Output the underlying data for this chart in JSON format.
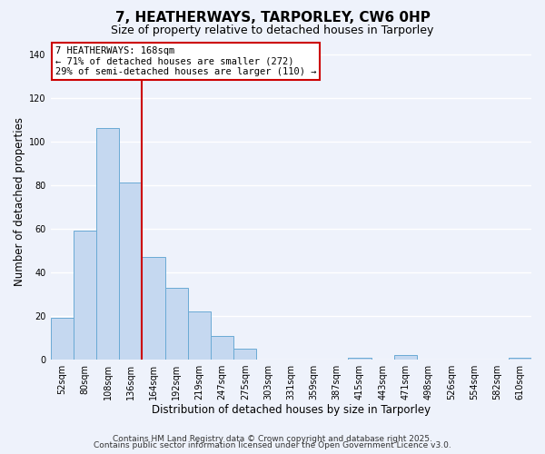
{
  "title": "7, HEATHERWAYS, TARPORLEY, CW6 0HP",
  "subtitle": "Size of property relative to detached houses in Tarporley",
  "xlabel": "Distribution of detached houses by size in Tarporley",
  "ylabel": "Number of detached properties",
  "bar_labels": [
    "52sqm",
    "80sqm",
    "108sqm",
    "136sqm",
    "164sqm",
    "192sqm",
    "219sqm",
    "247sqm",
    "275sqm",
    "303sqm",
    "331sqm",
    "359sqm",
    "387sqm",
    "415sqm",
    "443sqm",
    "471sqm",
    "498sqm",
    "526sqm",
    "554sqm",
    "582sqm",
    "610sqm"
  ],
  "bar_heights": [
    19,
    59,
    106,
    81,
    47,
    33,
    22,
    11,
    5,
    0,
    0,
    0,
    0,
    1,
    0,
    2,
    0,
    0,
    0,
    0,
    1
  ],
  "bar_color": "#c5d8f0",
  "bar_edge_color": "#6aaad4",
  "ylim": [
    0,
    145
  ],
  "yticks": [
    0,
    20,
    40,
    60,
    80,
    100,
    120,
    140
  ],
  "vline_index": 4,
  "vline_color": "#cc0000",
  "annotation_title": "7 HEATHERWAYS: 168sqm",
  "annotation_line1": "← 71% of detached houses are smaller (272)",
  "annotation_line2": "29% of semi-detached houses are larger (110) →",
  "footer1": "Contains HM Land Registry data © Crown copyright and database right 2025.",
  "footer2": "Contains public sector information licensed under the Open Government Licence v3.0.",
  "background_color": "#eef2fb",
  "grid_color": "#ffffff",
  "title_fontsize": 11,
  "subtitle_fontsize": 9,
  "axis_label_fontsize": 8.5,
  "tick_fontsize": 7,
  "annotation_fontsize": 7.5,
  "footer_fontsize": 6.5
}
